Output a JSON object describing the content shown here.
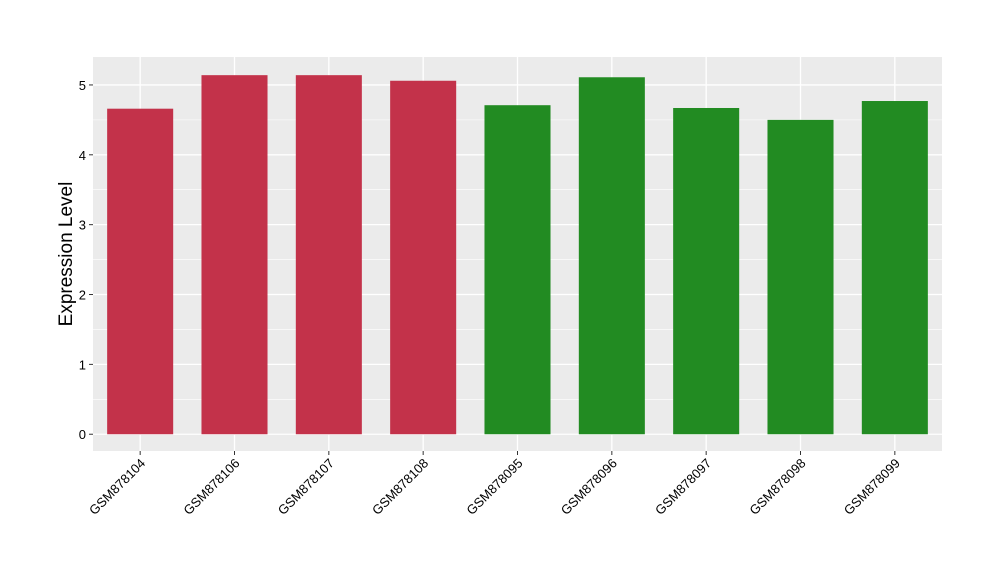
{
  "chart_data": {
    "type": "bar",
    "title": "",
    "xlabel": "",
    "ylabel": "Expression Level",
    "categories": [
      "GSM878104",
      "GSM878106",
      "GSM878107",
      "GSM878108",
      "GSM878095",
      "GSM878096",
      "GSM878097",
      "GSM878098",
      "GSM878099"
    ],
    "values": [
      4.66,
      5.14,
      5.14,
      5.06,
      4.71,
      5.11,
      4.67,
      4.5,
      4.77
    ],
    "bar_colors": [
      "#C3324A",
      "#C3324A",
      "#C3324A",
      "#C3324A",
      "#228B22",
      "#228B22",
      "#228B22",
      "#228B22",
      "#228B22"
    ],
    "yticks": [
      0,
      1,
      2,
      3,
      4,
      5
    ],
    "ylim": [
      -0.24,
      5.4
    ],
    "grid": true,
    "panel_background": "#EBEBEB"
  }
}
